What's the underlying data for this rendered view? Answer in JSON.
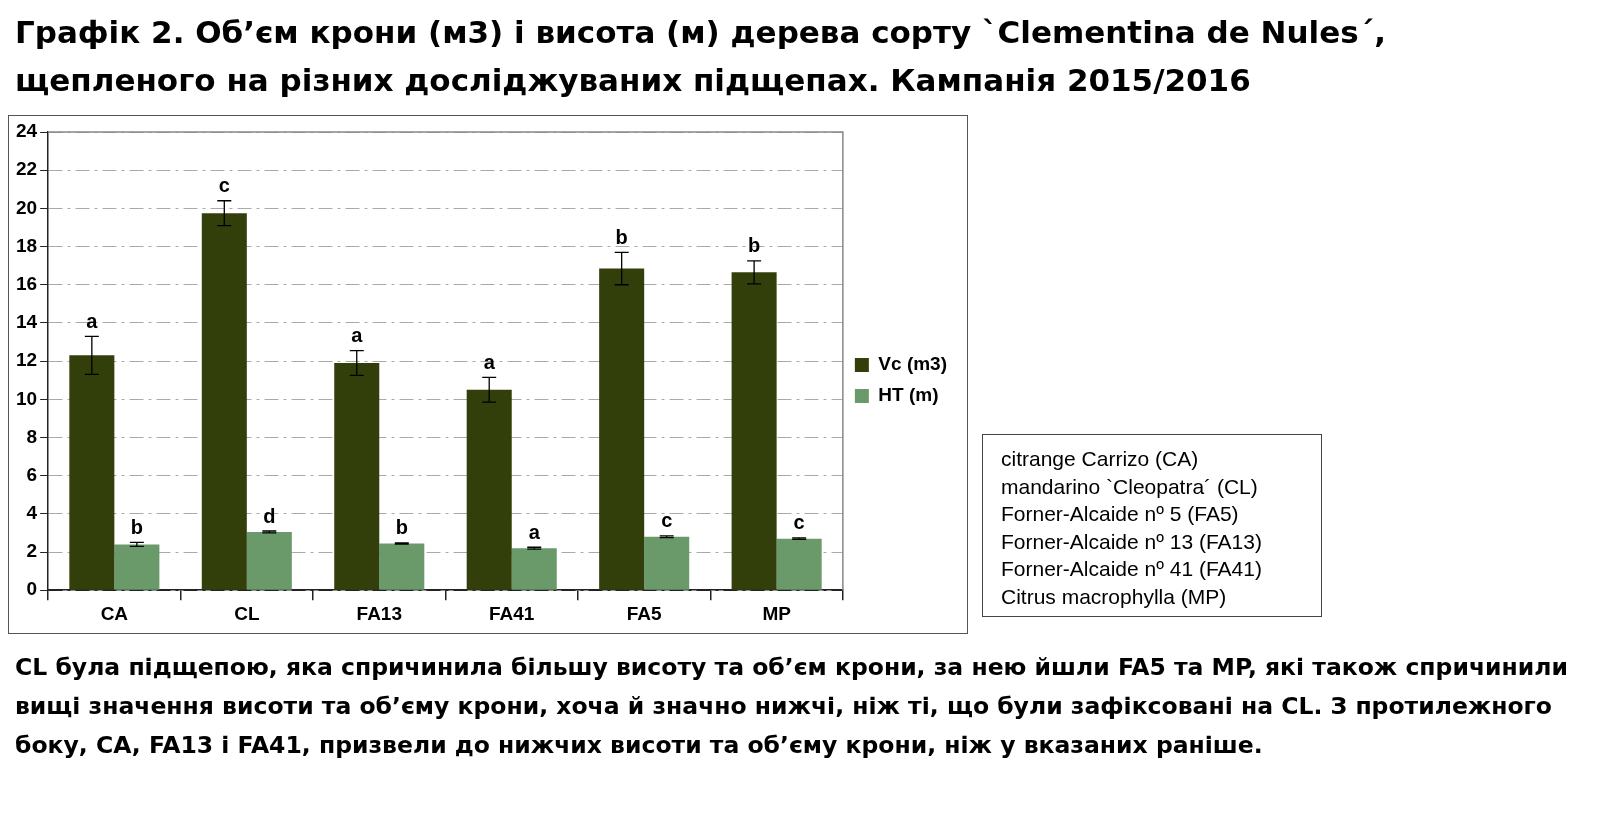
{
  "chart_data": {
    "type": "bar",
    "title": "Графік 2. Об’єм крони (м3) і висота (м) дерева сорту `Clementina de Nules´, щепленого на різних досліджуваних підщепах. Кампанія 2015/2016",
    "categories": [
      "CA",
      "CL",
      "FA13",
      "FA41",
      "FA5",
      "MP"
    ],
    "series": [
      {
        "name": "Vc (m3)",
        "color": "#333f0b",
        "values": [
          12.3,
          19.75,
          11.9,
          10.5,
          16.85,
          16.65
        ],
        "errors": [
          1.0,
          0.65,
          0.65,
          0.65,
          0.85,
          0.6
        ],
        "value_labels": [
          "a",
          "c",
          "a",
          "a",
          "b",
          "b"
        ]
      },
      {
        "name": "HT (m)",
        "color": "#6a9a6a",
        "values": [
          2.4,
          3.05,
          2.45,
          2.2,
          2.8,
          2.7
        ],
        "errors": [
          0.1,
          0.05,
          0.03,
          0.05,
          0.05,
          0.04
        ],
        "value_labels": [
          "b",
          "d",
          "b",
          "a",
          "c",
          "c"
        ]
      }
    ],
    "ylim": [
      0,
      24
    ],
    "yticks": [
      0,
      2,
      4,
      6,
      8,
      10,
      12,
      14,
      16,
      18,
      20,
      22,
      24
    ],
    "grid": "y",
    "legend": "right",
    "annotations": [
      "citrange Carrizo (CA)",
      "mandarino `Cleopatra´ (CL)",
      "Forner-Alcaide nº 5 (FA5)",
      "Forner-Alcaide nº 13 (FA13)",
      "Forner-Alcaide nº 41 (FA41)",
      "Citrus macrophylla (MP)",
      "CL була підщепою, яка спричинила більшу висоту та об’єм крони, за нею йшли FA5 та MP, які також спричинили вищі значення висоти та об’єму крони, хоча й значно нижчі, ніж ті, що були зафіксовані на CL. З протилежного боку, CA, FA13 і FA41, призвели до нижчих висоти та об’єму крони, ніж у вказаних раніше."
    ]
  }
}
